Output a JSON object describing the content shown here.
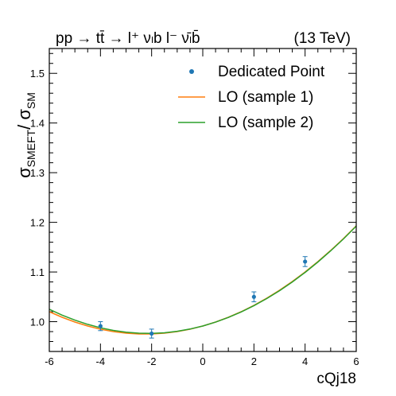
{
  "chart_data": {
    "type": "line",
    "title_left": "pp → tt̄ → l⁺ νₗb  l⁻ ν̄ₗb̄",
    "title_right": "(13 TeV)",
    "xlabel": "cQj18",
    "ylabel": "σ",
    "ylabel_sub": "SMEFT",
    "ylabel_sep": "/ σ",
    "ylabel_sub2": "SM",
    "xlim": [
      -6,
      6
    ],
    "ylim": [
      0.94,
      1.55
    ],
    "xticks": [
      -6,
      -4,
      -2,
      0,
      2,
      4,
      6
    ],
    "xtick_labels": [
      "-6",
      "-4",
      "-2",
      "0",
      "2",
      "4",
      "6"
    ],
    "yticks": [
      1.0,
      1.1,
      1.2,
      1.3,
      1.4,
      1.5
    ],
    "ytick_labels": [
      "1.0",
      "1.1",
      "1.2",
      "1.3",
      "1.4",
      "1.5"
    ],
    "grid": false,
    "legend_position": "top-right",
    "series": [
      {
        "name": "Dedicated Point",
        "kind": "errorbar",
        "color": "#1f77b4",
        "x": [
          -4,
          -2,
          2,
          4
        ],
        "y": [
          0.991,
          0.976,
          1.05,
          1.121
        ],
        "yerr": [
          0.009,
          0.009,
          0.01,
          0.01
        ]
      },
      {
        "name": "LO (sample 1)",
        "kind": "line",
        "color": "#ff7f0e",
        "x": [
          -6,
          -5.5,
          -5,
          -4.5,
          -4,
          -3.5,
          -3,
          -2.5,
          -2,
          -1.5,
          -1,
          -0.5,
          0,
          0.5,
          1,
          1.5,
          2,
          2.5,
          3,
          3.5,
          4,
          4.5,
          5,
          5.5,
          6
        ],
        "y": [
          1.02,
          1.0089,
          0.9993,
          0.9913,
          0.9849,
          0.9801,
          0.9769,
          0.9753,
          0.9753,
          0.9769,
          0.9801,
          0.9849,
          0.9913,
          0.9993,
          1.0089,
          1.0201,
          1.0329,
          1.0473,
          1.0633,
          1.0809,
          1.1001,
          1.1209,
          1.1433,
          1.1673,
          1.1929
        ]
      },
      {
        "name": "LO (sample 2)",
        "kind": "line",
        "color": "#2ca02c",
        "x": [
          -6,
          -5.5,
          -5,
          -4.5,
          -4,
          -3.5,
          -3,
          -2.5,
          -2,
          -1.5,
          -1,
          -0.5,
          0,
          0.5,
          1,
          1.5,
          2,
          2.5,
          3,
          3.5,
          4,
          4.5,
          5,
          5.5,
          6
        ],
        "y": [
          1.025,
          1.0132,
          1.0031,
          0.9946,
          0.9877,
          0.9825,
          0.9788,
          0.9768,
          0.9765,
          0.9777,
          0.9806,
          0.9851,
          0.9913,
          0.9991,
          1.0085,
          1.0195,
          1.0322,
          1.0465,
          1.0624,
          1.08,
          1.0992,
          1.1201,
          1.1425,
          1.1666,
          1.1924
        ]
      }
    ]
  }
}
